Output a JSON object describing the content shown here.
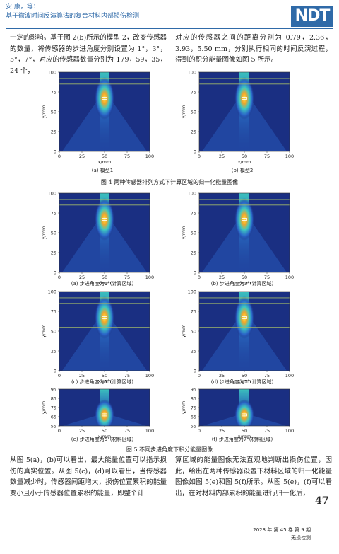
{
  "header": {
    "authors": "安 康，等：",
    "title": "基于微波时间反演算法的复合材料内部损伤检测",
    "logo": "NDT"
  },
  "top_text": {
    "left": "一定的影响。基于图 2(b)所示的模型 2，改变传感器的数量，将传感器的步进角度分别设置为 1°，3°，5°，7°，对应的传感器数量分别为 179，59，35，24 个，",
    "right": "对应的传感器之间的距离分别为 0.79，2.36，3.93，5.50 mm，分别执行相同的时间反演过程，得到的积分能量图像如图 5 所示。"
  },
  "fig4": {
    "caption": "图 4   两种传感器排列方式下计算区域的归一化能量图像",
    "subcaptions": [
      "(a) 模型1",
      "(b) 模型2"
    ]
  },
  "fig5": {
    "caption": "图 5   不同步进角度下积分能量图像",
    "subcaptions": [
      "(a) 步进角度为1°(计算区域)",
      "(b) 步进角度为3°(计算区域)",
      "(c) 步进角度为5°(计算区域)",
      "(d) 步进角度为7°(计算区域)",
      "(e) 步进角度为5°(材料区域)",
      "(f) 步进角度为7°(材料区域)"
    ]
  },
  "axes": {
    "xlabel": "x/mm",
    "ylabel": "y/mm",
    "full_xticks": [
      "0",
      "25",
      "50",
      "75",
      "100"
    ],
    "full_yticks": [
      "0",
      "25",
      "50",
      "75",
      "100"
    ],
    "mat_xticks": [
      "0",
      "25",
      "50",
      "75",
      "100"
    ],
    "mat_yticks": [
      "55",
      "65",
      "75",
      "85",
      "95"
    ]
  },
  "bottom_text": {
    "left": "从图 5(a)，(b)可以看出，最大能量位置可以指示损伤的真实位置。从图 5(c)，(d)可以看出，当传感器数量减少时，传感器间距增大，损伤位置累积的能量变小且小于传感器位置累积的能量，即整个计",
    "right": "算区域的能量图像无法直观地判断出损伤位置，因此，给出在两种传感器设置下材料区域的归一化能量图像如图 5(e)和图 5(f)所示。从图 5(e)，(f)可以看出，在对材料内部累积的能量进行归一化后，"
  },
  "footer": {
    "issue": "2023 年 第 45 卷 第 9 期",
    "journal": "无损检测",
    "page": "47"
  },
  "colors": {
    "accent": "#2f6aa8",
    "heat_bg": "#1a2f82",
    "heat_hot": "#f2e34a"
  },
  "chart_data": [
    {
      "type": "heatmap",
      "id": "fig4a",
      "subcaption": "(a) 模型1",
      "xlabel": "x/mm",
      "ylabel": "y/mm",
      "xlim": [
        0,
        100
      ],
      "ylim": [
        0,
        100
      ],
      "hotspot": [
        50,
        67
      ]
    },
    {
      "type": "heatmap",
      "id": "fig4b",
      "subcaption": "(b) 模型2",
      "xlabel": "x/mm",
      "ylabel": "y/mm",
      "xlim": [
        0,
        100
      ],
      "ylim": [
        0,
        100
      ],
      "hotspot": [
        50,
        67
      ]
    },
    {
      "type": "heatmap",
      "id": "fig5a",
      "subcaption": "(a) 步进角度为1°(计算区域)",
      "xlabel": "x/mm",
      "ylabel": "y/mm",
      "xlim": [
        0,
        100
      ],
      "ylim": [
        0,
        100
      ],
      "hotspot": [
        50,
        67
      ]
    },
    {
      "type": "heatmap",
      "id": "fig5b",
      "subcaption": "(b) 步进角度为3°(计算区域)",
      "xlabel": "x/mm",
      "ylabel": "y/mm",
      "xlim": [
        0,
        100
      ],
      "ylim": [
        0,
        100
      ],
      "hotspot": [
        50,
        67
      ]
    },
    {
      "type": "heatmap",
      "id": "fig5c",
      "subcaption": "(c) 步进角度为5°(计算区域)",
      "xlabel": "x/mm",
      "ylabel": "y/mm",
      "xlim": [
        0,
        100
      ],
      "ylim": [
        0,
        100
      ],
      "hotspot": [
        50,
        67
      ]
    },
    {
      "type": "heatmap",
      "id": "fig5d",
      "subcaption": "(d) 步进角度为7°(计算区域)",
      "xlabel": "x/mm",
      "ylabel": "y/mm",
      "xlim": [
        0,
        100
      ],
      "ylim": [
        0,
        100
      ],
      "hotspot": [
        50,
        67
      ]
    },
    {
      "type": "heatmap",
      "id": "fig5e",
      "subcaption": "(e) 步进角度为5°(材料区域)",
      "xlabel": "x/mm",
      "ylabel": "y/mm",
      "xlim": [
        0,
        100
      ],
      "ylim": [
        55,
        95
      ],
      "hotspot": [
        50,
        67
      ]
    },
    {
      "type": "heatmap",
      "id": "fig5f",
      "subcaption": "(f) 步进角度为7°(材料区域)",
      "xlabel": "x/mm",
      "ylabel": "y/mm",
      "xlim": [
        0,
        100
      ],
      "ylim": [
        55,
        95
      ],
      "hotspot": [
        50,
        67
      ]
    }
  ]
}
